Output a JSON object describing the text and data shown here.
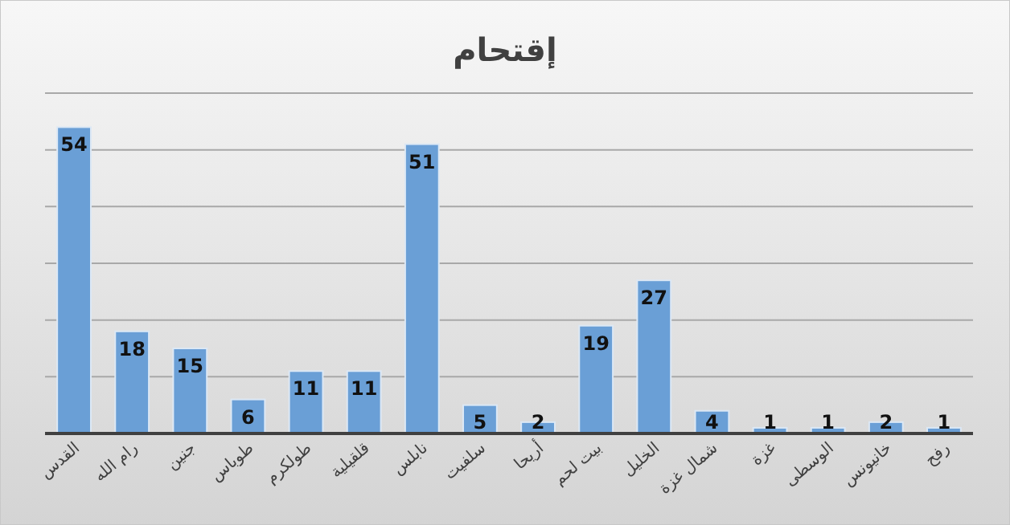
{
  "chart_data": {
    "type": "bar",
    "title": "إقتحام",
    "categories": [
      "القدس",
      "رام الله",
      "جنين",
      "طوباس",
      "طولكرم",
      "قلقيلية",
      "نابلس",
      "سلفيت",
      "أريحا",
      "بيت لحم",
      "الخليل",
      "شمال غزة",
      "غزة",
      "الوسطى",
      "خانيونس",
      "رفح"
    ],
    "values": [
      54,
      18,
      15,
      6,
      11,
      11,
      51,
      5,
      2,
      19,
      27,
      4,
      1,
      1,
      2,
      1
    ],
    "color": "#6a9fd6",
    "data_labels": true,
    "grid": "y",
    "tick_labels": "x",
    "ylim": [
      0,
      60
    ],
    "yticks": [
      {
        "value": 0,
        "label": null
      },
      {
        "value": 10,
        "label": null
      },
      {
        "value": 20,
        "label": null
      },
      {
        "value": 30,
        "label": null
      },
      {
        "value": 40,
        "label": null
      },
      {
        "value": 50,
        "label": null
      },
      {
        "value": 60,
        "label": null
      }
    ]
  }
}
